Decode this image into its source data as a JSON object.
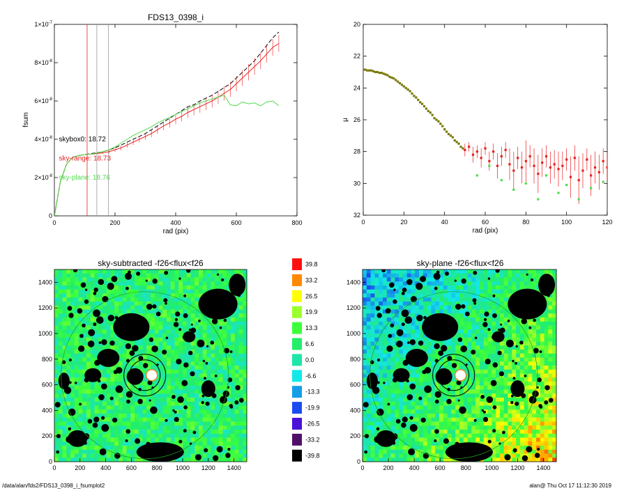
{
  "footer": {
    "path": "/data/alan/fds2/FDS13_0398_i_fsumplot2",
    "stamp": "alan@  Thu Oct 17 11:12:30 2019"
  },
  "colors": {
    "black_profile": "#000000",
    "red_profile": "#e8201e",
    "green_profile": "#4ddd4d",
    "olive_points": "#7a7a10"
  },
  "chart_data": [
    {
      "type": "line",
      "title": "FDS13_0398_i",
      "xlabel": "rad (pix)",
      "ylabel": "fsum",
      "xlim": [
        0,
        800
      ],
      "ylim": [
        0,
        1e-07
      ],
      "xticks": [
        "0",
        "200",
        "400",
        "600",
        "800"
      ],
      "yticks": [
        {
          "v": 0,
          "label": "0"
        },
        {
          "v": 2e-08,
          "label": "2×10",
          "exp": "-8"
        },
        {
          "v": 4e-08,
          "label": "4×10",
          "exp": "-8"
        },
        {
          "v": 6e-08,
          "label": "6×10",
          "exp": "-8"
        },
        {
          "v": 8e-08,
          "label": "8×10",
          "exp": "-8"
        },
        {
          "v": 1e-07,
          "label": "1×10",
          "exp": "-7"
        }
      ],
      "vlines": [
        {
          "x": 108,
          "color": "red"
        },
        {
          "x": 140,
          "color": "gray"
        },
        {
          "x": 178,
          "color": "gray"
        }
      ],
      "annotations": [
        {
          "text": "skybox0: 18.72",
          "color": "black",
          "x": 15,
          "y": 4e-08
        },
        {
          "text": "sky-range: 18.73",
          "color": "red",
          "x": 15,
          "y": 3e-08
        },
        {
          "text": "sky-plane: 18.76",
          "color": "green",
          "x": 15,
          "y": 2e-08
        }
      ],
      "series": [
        {
          "style": "dashed",
          "color": "black",
          "x": [
            0,
            20,
            40,
            60,
            80,
            100,
            120,
            140,
            160,
            180,
            200,
            220,
            240,
            260,
            280,
            300,
            320,
            340,
            360,
            380,
            400,
            420,
            440,
            460,
            480,
            500,
            520,
            540,
            560,
            580,
            600,
            620,
            640,
            660,
            680,
            700,
            720,
            740
          ],
          "y": [
            0,
            1.8e-08,
            2.7e-08,
            3.05e-08,
            3.15e-08,
            3.2e-08,
            3.25e-08,
            3.3e-08,
            3.35e-08,
            3.45e-08,
            3.55e-08,
            3.7e-08,
            3.85e-08,
            4e-08,
            4.15e-08,
            4.3e-08,
            4.5e-08,
            4.7e-08,
            4.9e-08,
            5.1e-08,
            5.3e-08,
            5.5e-08,
            5.7e-08,
            5.8e-08,
            6e-08,
            6.15e-08,
            6.3e-08,
            6.5e-08,
            6.7e-08,
            6.9e-08,
            7.2e-08,
            7.5e-08,
            7.8e-08,
            8.1e-08,
            8.5e-08,
            8.9e-08,
            9.3e-08,
            9.6e-08
          ]
        },
        {
          "style": "solid-errorbars",
          "color": "red",
          "x": [
            0,
            20,
            40,
            60,
            80,
            100,
            120,
            140,
            160,
            180,
            200,
            220,
            240,
            260,
            280,
            300,
            320,
            340,
            360,
            380,
            400,
            420,
            440,
            460,
            480,
            500,
            520,
            540,
            560,
            580,
            600,
            620,
            640,
            660,
            680,
            700,
            720,
            740
          ],
          "y": [
            0,
            1.8e-08,
            2.7e-08,
            3.05e-08,
            3.15e-08,
            3.2e-08,
            3.22e-08,
            3.25e-08,
            3.3e-08,
            3.35e-08,
            3.45e-08,
            3.55e-08,
            3.7e-08,
            3.85e-08,
            4e-08,
            4.15e-08,
            4.3e-08,
            4.5e-08,
            4.7e-08,
            4.85e-08,
            5.05e-08,
            5.2e-08,
            5.4e-08,
            5.55e-08,
            5.7e-08,
            5.85e-08,
            6e-08,
            6.2e-08,
            6.4e-08,
            6.6e-08,
            6.9e-08,
            7.2e-08,
            7.5e-08,
            7.8e-08,
            8.1e-08,
            8.45e-08,
            8.8e-08,
            9e-08
          ]
        },
        {
          "style": "solid",
          "color": "green",
          "x": [
            0,
            20,
            40,
            60,
            80,
            100,
            120,
            140,
            160,
            180,
            200,
            220,
            240,
            260,
            280,
            300,
            320,
            340,
            360,
            380,
            400,
            420,
            440,
            460,
            480,
            500,
            520,
            540,
            560,
            580,
            600,
            620,
            640,
            660,
            680,
            700,
            720,
            740
          ],
          "y": [
            0,
            1.8e-08,
            2.7e-08,
            3.05e-08,
            3.15e-08,
            3.2e-08,
            3.22e-08,
            3.28e-08,
            3.35e-08,
            3.45e-08,
            3.6e-08,
            3.8e-08,
            4e-08,
            4.2e-08,
            4.35e-08,
            4.5e-08,
            4.65e-08,
            4.85e-08,
            5e-08,
            5.15e-08,
            5.3e-08,
            5.45e-08,
            5.6e-08,
            5.75e-08,
            5.9e-08,
            6e-08,
            6.1e-08,
            6.2e-08,
            6.3e-08,
            5.8e-08,
            5.75e-08,
            5.95e-08,
            5.85e-08,
            5.9e-08,
            5.75e-08,
            5.95e-08,
            6e-08,
            5.75e-08
          ]
        }
      ]
    },
    {
      "type": "scatter",
      "xlabel": "rad (pix)",
      "ylabel": "μ",
      "xlim": [
        0,
        120
      ],
      "ylim": [
        32,
        20
      ],
      "xticks": [
        "0",
        "20",
        "40",
        "60",
        "80",
        "100",
        "120"
      ],
      "yticks": [
        "20",
        "22",
        "24",
        "26",
        "28",
        "30",
        "32"
      ],
      "series": [
        {
          "style": "points",
          "color": "olive",
          "x": [
            0,
            1,
            2,
            3,
            4,
            5,
            6,
            7,
            8,
            9,
            10,
            11,
            12,
            13,
            14,
            15,
            16,
            17,
            18,
            19,
            20,
            21,
            22,
            23,
            24,
            25,
            26,
            27,
            28,
            29,
            30,
            31,
            32,
            33,
            34,
            35,
            36,
            37,
            38,
            39,
            40,
            41,
            42,
            43,
            44,
            45,
            46,
            47,
            48,
            49
          ],
          "y": [
            22.85,
            22.85,
            22.9,
            22.9,
            22.9,
            22.95,
            23.0,
            23.0,
            23.05,
            23.05,
            23.1,
            23.15,
            23.2,
            23.3,
            23.35,
            23.4,
            23.5,
            23.6,
            23.7,
            23.8,
            23.9,
            24.0,
            24.1,
            24.2,
            24.35,
            24.5,
            24.6,
            24.75,
            24.9,
            25.0,
            25.15,
            25.3,
            25.45,
            25.55,
            25.7,
            25.9,
            26.0,
            26.1,
            26.25,
            26.4,
            26.6,
            26.75,
            26.9,
            27.0,
            27.1,
            27.3,
            27.4,
            27.5,
            27.7,
            27.8
          ]
        },
        {
          "style": "points-errorbars",
          "color": "red",
          "x": [
            50,
            52,
            54,
            56,
            58,
            60,
            62,
            64,
            66,
            68,
            70,
            72,
            74,
            76,
            78,
            80,
            82,
            84,
            86,
            88,
            90,
            92,
            94,
            96,
            98,
            100,
            102,
            104,
            106,
            108,
            110,
            112,
            114,
            116,
            118,
            120
          ],
          "y": [
            27.9,
            27.7,
            28.2,
            28.0,
            28.4,
            27.8,
            28.6,
            28.0,
            28.9,
            28.3,
            27.9,
            28.8,
            29.2,
            28.4,
            29.0,
            28.6,
            28.3,
            28.9,
            29.4,
            28.7,
            28.3,
            29.0,
            28.8,
            29.1,
            28.9,
            28.5,
            29.6,
            28.4,
            29.8,
            29.2,
            28.5,
            29.5,
            29.0,
            29.3,
            28.6,
            29.0
          ],
          "err": [
            0.4,
            0.3,
            0.5,
            0.4,
            0.6,
            0.4,
            0.6,
            0.5,
            0.8,
            0.6,
            0.5,
            1.0,
            1.2,
            0.7,
            1.0,
            1.3,
            0.7,
            1.1,
            1.2,
            0.9,
            0.7,
            1.0,
            0.9,
            1.1,
            0.9,
            0.7,
            1.3,
            0.8,
            1.5,
            1.1,
            0.7,
            1.3,
            1.0,
            1.1,
            0.8,
            0.9
          ]
        },
        {
          "style": "points",
          "color": "green",
          "x": [
            56,
            62,
            68,
            74,
            80,
            86,
            90,
            96,
            100,
            106,
            112,
            118
          ],
          "y": [
            29.5,
            28.9,
            29.8,
            30.4,
            30.0,
            31.0,
            29.5,
            30.6,
            30.1,
            31.0,
            30.3,
            29.9
          ]
        }
      ]
    },
    {
      "type": "heatmap",
      "title": "sky-subtracted -f26<flux<f26",
      "xlim": [
        0,
        1500
      ],
      "ylim": [
        0,
        1500
      ],
      "xticks": [
        "0",
        "200",
        "400",
        "600",
        "800",
        "1000",
        "1200",
        "1400"
      ],
      "yticks": [
        "0",
        "200",
        "400",
        "600",
        "800",
        "1000",
        "1200",
        "1400"
      ],
      "trend": "flat",
      "colorbar": {
        "labels": [
          "39.8",
          "33.2",
          "26.5",
          "19.9",
          "13.3",
          "6.6",
          "0.0",
          "-6.6",
          "-13.3",
          "-19.9",
          "-26.5",
          "-33.2",
          "-39.8"
        ],
        "colors": [
          "#ff1010",
          "#ff8a00",
          "#ffff00",
          "#9bff2a",
          "#3cff3c",
          "#22ee6a",
          "#1ce6a8",
          "#12e8e8",
          "#149ee6",
          "#1a4bf0",
          "#4a12d8",
          "#50106a",
          "#000000"
        ]
      }
    },
    {
      "type": "heatmap",
      "title": "sky-plane -f26<flux<f26",
      "xlim": [
        0,
        1500
      ],
      "ylim": [
        0,
        1500
      ],
      "xticks": [
        "0",
        "200",
        "400",
        "600",
        "800",
        "1000",
        "1200",
        "1400"
      ],
      "yticks": [
        "0",
        "200",
        "400",
        "600",
        "800",
        "1000",
        "1200",
        "1400"
      ],
      "trend": "gradient-blue-top-left-to-red-bottom-right"
    }
  ]
}
